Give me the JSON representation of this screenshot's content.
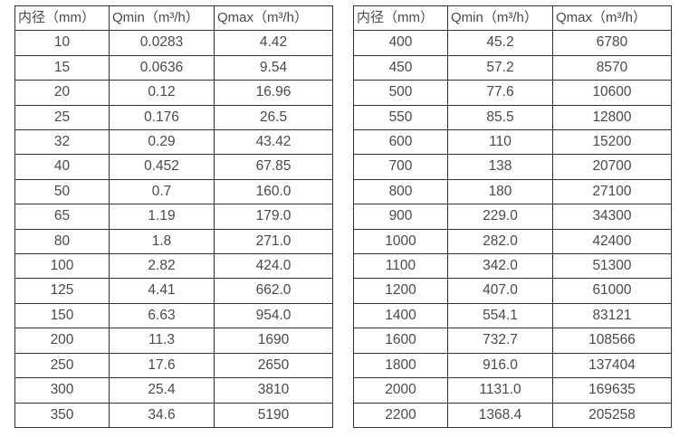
{
  "colors": {
    "background": "#ffffff",
    "border": "#333333",
    "text": "#4a4a4a"
  },
  "tables": [
    {
      "name": "small-diameters",
      "headers": [
        "内径（mm）",
        "Qmin（m³/h）",
        "Qmax（m³/h）"
      ],
      "rows": [
        [
          "10",
          "0.0283",
          "4.42"
        ],
        [
          "15",
          "0.0636",
          "9.54"
        ],
        [
          "20",
          "0.12",
          "16.96"
        ],
        [
          "25",
          "0.176",
          "26.5"
        ],
        [
          "32",
          "0.29",
          "43.42"
        ],
        [
          "40",
          "0.452",
          "67.85"
        ],
        [
          "50",
          "0.7",
          "160.0"
        ],
        [
          "65",
          "1.19",
          "179.0"
        ],
        [
          "80",
          "1.8",
          "271.0"
        ],
        [
          "100",
          "2.82",
          "424.0"
        ],
        [
          "125",
          "4.41",
          "662.0"
        ],
        [
          "150",
          "6.63",
          "954.0"
        ],
        [
          "200",
          "11.3",
          "1690"
        ],
        [
          "250",
          "17.6",
          "2650"
        ],
        [
          "300",
          "25.4",
          "3810"
        ],
        [
          "350",
          "34.6",
          "5190"
        ]
      ]
    },
    {
      "name": "large-diameters",
      "headers": [
        "内径（mm）",
        "Qmin（m³/h）",
        "Qmax（m³/h）"
      ],
      "rows": [
        [
          "400",
          "45.2",
          "6780"
        ],
        [
          "450",
          "57.2",
          "8570"
        ],
        [
          "500",
          "77.6",
          "10600"
        ],
        [
          "550",
          "85.5",
          "12800"
        ],
        [
          "600",
          "110",
          "15200"
        ],
        [
          "700",
          "138",
          "20700"
        ],
        [
          "800",
          "180",
          "27100"
        ],
        [
          "900",
          "229.0",
          "34300"
        ],
        [
          "1000",
          "282.0",
          "42400"
        ],
        [
          "1100",
          "342.0",
          "51300"
        ],
        [
          "1200",
          "407.0",
          "61000"
        ],
        [
          "1400",
          "554.1",
          "83121"
        ],
        [
          "1600",
          "732.7",
          "108566"
        ],
        [
          "1800",
          "916.0",
          "137404"
        ],
        [
          "2000",
          "1131.0",
          "169635"
        ],
        [
          "2200",
          "1368.4",
          "205258"
        ]
      ]
    }
  ]
}
